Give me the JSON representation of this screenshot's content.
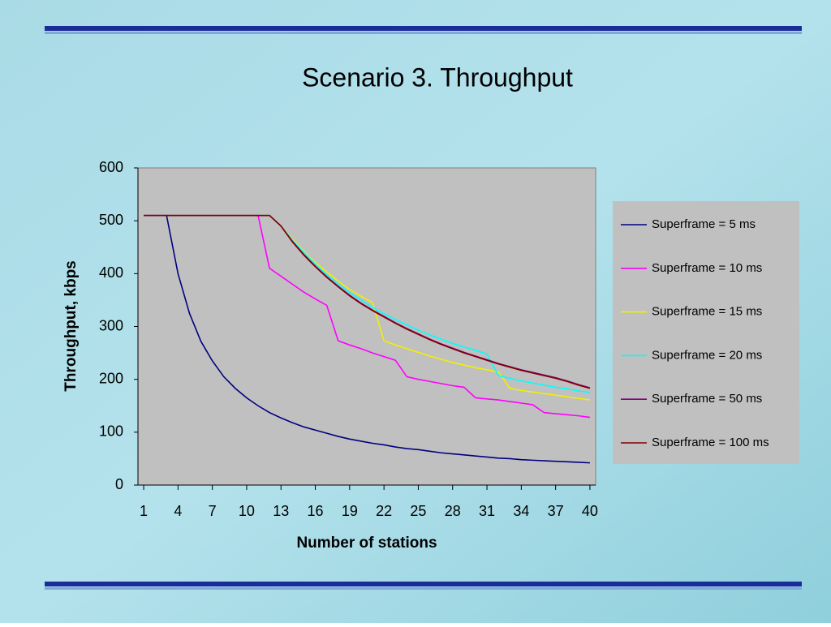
{
  "chart_data": {
    "type": "line",
    "title": "Scenario 3. Throughput",
    "x_label": "Number of stations",
    "y_label": "Throughput,  kbps",
    "x": [
      1,
      2,
      3,
      4,
      5,
      6,
      7,
      8,
      9,
      10,
      11,
      12,
      13,
      14,
      15,
      16,
      17,
      18,
      19,
      20,
      21,
      22,
      23,
      24,
      25,
      26,
      27,
      28,
      29,
      30,
      31,
      32,
      33,
      34,
      35,
      36,
      37,
      38,
      39,
      40
    ],
    "xlim": [
      0.5,
      40.5
    ],
    "xticks": [
      1,
      4,
      7,
      10,
      13,
      16,
      19,
      22,
      25,
      28,
      31,
      34,
      37,
      40
    ],
    "ylim": [
      0,
      600
    ],
    "yticks": [
      0,
      100,
      200,
      300,
      400,
      500,
      600
    ],
    "legend": "right",
    "series": [
      {
        "name": "Superframe = 5 ms",
        "color": "#000080",
        "values": [
          510,
          510,
          510,
          400,
          325,
          272,
          235,
          205,
          183,
          165,
          150,
          137,
          127,
          118,
          110,
          104,
          98,
          92,
          87,
          83,
          79,
          76,
          72,
          69,
          67,
          64,
          61,
          59,
          57,
          55,
          53,
          51,
          50,
          48,
          47,
          46,
          45,
          44,
          43,
          42
        ]
      },
      {
        "name": "Superframe = 10 ms",
        "color": "#ff00ff",
        "values": [
          510,
          510,
          510,
          510,
          510,
          510,
          510,
          510,
          510,
          510,
          510,
          410,
          395,
          380,
          365,
          352,
          340,
          273,
          265,
          258,
          250,
          243,
          236,
          205,
          200,
          196,
          192,
          188,
          185,
          165,
          163,
          161,
          158,
          155,
          152,
          137,
          135,
          133,
          131,
          128
        ]
      },
      {
        "name": "Superframe = 15 ms",
        "color": "#f0f000",
        "values": [
          510,
          510,
          510,
          510,
          510,
          510,
          510,
          510,
          510,
          510,
          510,
          510,
          490,
          465,
          442,
          421,
          403,
          386,
          370,
          357,
          345,
          273,
          265,
          258,
          251,
          244,
          238,
          232,
          227,
          222,
          218,
          214,
          183,
          179,
          176,
          173,
          170,
          167,
          164,
          161
        ]
      },
      {
        "name": "Superframe = 20 ms",
        "color": "#00ffff",
        "values": [
          510,
          510,
          510,
          510,
          510,
          510,
          510,
          510,
          510,
          510,
          510,
          510,
          490,
          463,
          440,
          418,
          398,
          380,
          364,
          350,
          336,
          324,
          313,
          303,
          293,
          284,
          276,
          268,
          261,
          255,
          248,
          207,
          202,
          197,
          193,
          189,
          185,
          182,
          178,
          175
        ]
      },
      {
        "name": "Superframe = 50 ms",
        "color": "#800080",
        "values": [
          510,
          510,
          510,
          510,
          510,
          510,
          510,
          510,
          510,
          510,
          510,
          510,
          490,
          461,
          436,
          414,
          394,
          376,
          359,
          344,
          331,
          319,
          307,
          296,
          286,
          276,
          267,
          259,
          251,
          244,
          237,
          230,
          224,
          218,
          213,
          208,
          203,
          197,
          190,
          184
        ]
      },
      {
        "name": "Superframe = 100 ms",
        "color": "#800000",
        "values": [
          510,
          510,
          510,
          510,
          510,
          510,
          510,
          510,
          510,
          510,
          510,
          510,
          490,
          460,
          435,
          413,
          393,
          375,
          358,
          343,
          330,
          318,
          306,
          295,
          285,
          275,
          266,
          258,
          250,
          243,
          236,
          229,
          223,
          217,
          212,
          207,
          202,
          196,
          189,
          183
        ]
      }
    ]
  }
}
